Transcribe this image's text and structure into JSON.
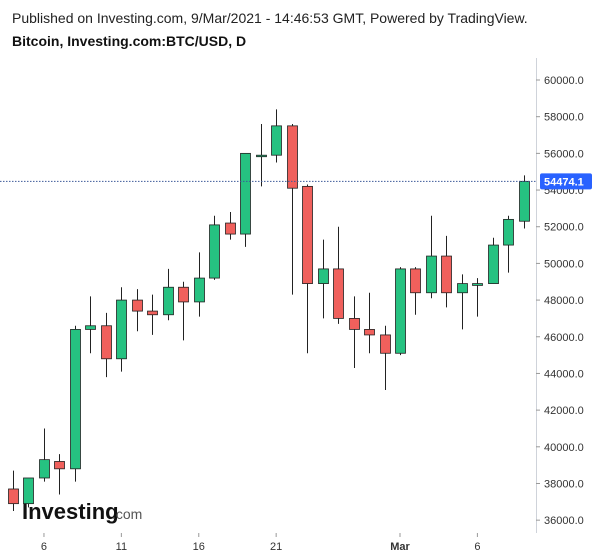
{
  "header": {
    "published": "Published on Investing.com, 9/Mar/2021 - 14:46:53 GMT, Powered by TradingView.",
    "title": "Bitcoin, Investing.com:BTC/USD, D"
  },
  "logo": {
    "main": "Investing",
    "suffix": ".com"
  },
  "colors": {
    "up": "#26c281",
    "down": "#f0605c",
    "last_line": "#3d5a99",
    "tag": "#2962ff"
  },
  "chart_data": {
    "type": "candlestick",
    "ylim": [
      35300,
      61200
    ],
    "y_ticks": [
      36000,
      38000,
      40000,
      42000,
      44000,
      46000,
      48000,
      50000,
      52000,
      54000,
      56000,
      58000,
      60000
    ],
    "y_tick_labels": [
      "36000.0",
      "38000.0",
      "40000.0",
      "42000.0",
      "44000.0",
      "46000.0",
      "48000.0",
      "50000.0",
      "52000.0",
      "54000.0",
      "56000.0",
      "58000.0",
      "60000.0"
    ],
    "x_ticks": [
      {
        "label": "6",
        "index": 2,
        "bold": false
      },
      {
        "label": "11",
        "index": 7,
        "bold": false
      },
      {
        "label": "16",
        "index": 12,
        "bold": false
      },
      {
        "label": "21",
        "index": 17,
        "bold": false
      },
      {
        "label": "Mar",
        "index": 25,
        "bold": true
      },
      {
        "label": "6",
        "index": 30,
        "bold": false
      }
    ],
    "last_price": 54474.1,
    "last_price_label": "54474.1",
    "candles": [
      {
        "o": 37700,
        "h": 38700,
        "l": 36500,
        "c": 36900
      },
      {
        "o": 36900,
        "h": 38300,
        "l": 36700,
        "c": 38300
      },
      {
        "o": 38300,
        "h": 41000,
        "l": 38100,
        "c": 39300
      },
      {
        "o": 39200,
        "h": 39600,
        "l": 37400,
        "c": 38800
      },
      {
        "o": 38800,
        "h": 46600,
        "l": 38100,
        "c": 46400
      },
      {
        "o": 46400,
        "h": 48200,
        "l": 45100,
        "c": 46600
      },
      {
        "o": 46600,
        "h": 47300,
        "l": 43800,
        "c": 44800
      },
      {
        "o": 44800,
        "h": 48700,
        "l": 44100,
        "c": 48000
      },
      {
        "o": 48000,
        "h": 48600,
        "l": 46300,
        "c": 47400
      },
      {
        "o": 47400,
        "h": 48300,
        "l": 46100,
        "c": 47200
      },
      {
        "o": 47200,
        "h": 49700,
        "l": 46900,
        "c": 48700
      },
      {
        "o": 48700,
        "h": 49000,
        "l": 45800,
        "c": 47900
      },
      {
        "o": 47900,
        "h": 50600,
        "l": 47100,
        "c": 49200
      },
      {
        "o": 49200,
        "h": 52600,
        "l": 49100,
        "c": 52100
      },
      {
        "o": 52200,
        "h": 52800,
        "l": 51300,
        "c": 51600
      },
      {
        "o": 51600,
        "h": 56000,
        "l": 50900,
        "c": 56000
      },
      {
        "o": 55900,
        "h": 57600,
        "l": 54200,
        "c": 55900
      },
      {
        "o": 55900,
        "h": 58400,
        "l": 55500,
        "c": 57500
      },
      {
        "o": 57500,
        "h": 57600,
        "l": 48300,
        "c": 54100
      },
      {
        "o": 54200,
        "h": 54300,
        "l": 45100,
        "c": 48900
      },
      {
        "o": 48900,
        "h": 51300,
        "l": 47000,
        "c": 49700
      },
      {
        "o": 49700,
        "h": 52000,
        "l": 46700,
        "c": 47000
      },
      {
        "o": 47000,
        "h": 48200,
        "l": 44300,
        "c": 46400
      },
      {
        "o": 46400,
        "h": 48400,
        "l": 45100,
        "c": 46100
      },
      {
        "o": 46100,
        "h": 46600,
        "l": 43100,
        "c": 45100
      },
      {
        "o": 45100,
        "h": 49800,
        "l": 45000,
        "c": 49700
      },
      {
        "o": 49700,
        "h": 49800,
        "l": 47200,
        "c": 48400
      },
      {
        "o": 48400,
        "h": 52600,
        "l": 48100,
        "c": 50400
      },
      {
        "o": 50400,
        "h": 51500,
        "l": 47600,
        "c": 48400
      },
      {
        "o": 48400,
        "h": 49400,
        "l": 46400,
        "c": 48900
      },
      {
        "o": 48800,
        "h": 49200,
        "l": 47100,
        "c": 48900
      },
      {
        "o": 48900,
        "h": 51400,
        "l": 48900,
        "c": 51000
      },
      {
        "o": 51000,
        "h": 52600,
        "l": 49500,
        "c": 52400
      },
      {
        "o": 52300,
        "h": 54800,
        "l": 51900,
        "c": 54474.1
      }
    ]
  }
}
